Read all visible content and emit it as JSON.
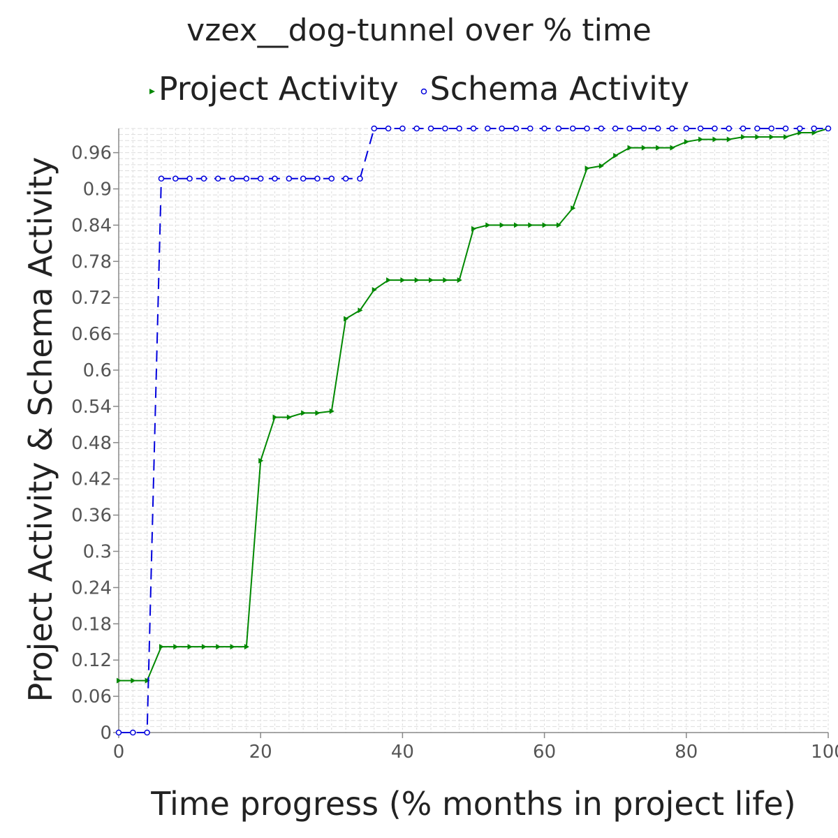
{
  "chart_data": {
    "type": "line",
    "title": "vzex__dog-tunnel over % time",
    "xlabel": "Time progress (% months in project life)",
    "ylabel": "Project Activity & Schema Activity",
    "xlim": [
      0,
      100
    ],
    "ylim": [
      0,
      1.0
    ],
    "x_ticks": [
      0,
      20,
      40,
      60,
      80,
      100
    ],
    "x_tick_labels": [
      "0",
      "20",
      "40",
      "60",
      "80",
      "100"
    ],
    "y_ticks": [
      0,
      0.06,
      0.12,
      0.18,
      0.24,
      0.3,
      0.36,
      0.42,
      0.48,
      0.54,
      0.6,
      0.66,
      0.72,
      0.78,
      0.84,
      0.9,
      0.96
    ],
    "y_tick_labels": [
      "0",
      "0.06",
      "0.12",
      "0.18",
      "0.24",
      "0.3",
      "0.36",
      "0.42",
      "0.48",
      "0.54",
      "0.6",
      "0.66",
      "0.72",
      "0.78",
      "0.84",
      "0.9",
      "0.96"
    ],
    "grid": true,
    "legend_position": "top",
    "series": [
      {
        "name": "Project Activity",
        "color": "#008800",
        "line_style": "solid",
        "marker": "triangle-right",
        "x": [
          0,
          2,
          4,
          6,
          8,
          10,
          12,
          14,
          16,
          18,
          20,
          22,
          24,
          26,
          28,
          30,
          32,
          34,
          36,
          38,
          40,
          42,
          44,
          46,
          48,
          50,
          52,
          54,
          56,
          58,
          60,
          62,
          64,
          66,
          68,
          70,
          72,
          74,
          76,
          78,
          80,
          82,
          84,
          86,
          88,
          90,
          92,
          94,
          96,
          98,
          100
        ],
        "y": [
          0.086,
          0.086,
          0.086,
          0.142,
          0.142,
          0.142,
          0.142,
          0.142,
          0.142,
          0.142,
          0.45,
          0.522,
          0.522,
          0.529,
          0.529,
          0.532,
          0.685,
          0.699,
          0.733,
          0.749,
          0.749,
          0.749,
          0.749,
          0.749,
          0.749,
          0.834,
          0.84,
          0.84,
          0.84,
          0.84,
          0.84,
          0.84,
          0.868,
          0.934,
          0.938,
          0.955,
          0.968,
          0.968,
          0.968,
          0.968,
          0.978,
          0.982,
          0.982,
          0.982,
          0.986,
          0.986,
          0.986,
          0.986,
          0.993,
          0.993,
          1.0
        ]
      },
      {
        "name": "Schema Activity",
        "color": "#0000dd",
        "line_style": "dashed",
        "marker": "circle",
        "x": [
          0,
          2,
          4,
          6,
          8,
          10,
          12,
          14,
          16,
          18,
          20,
          22,
          24,
          26,
          28,
          30,
          32,
          34,
          36,
          38,
          40,
          42,
          44,
          46,
          48,
          50,
          52,
          54,
          56,
          58,
          60,
          62,
          64,
          66,
          68,
          70,
          72,
          74,
          76,
          78,
          80,
          82,
          84,
          86,
          88,
          90,
          92,
          94,
          96,
          98,
          100
        ],
        "y": [
          0,
          0,
          0,
          0.917,
          0.917,
          0.917,
          0.917,
          0.917,
          0.917,
          0.917,
          0.917,
          0.917,
          0.917,
          0.917,
          0.917,
          0.917,
          0.917,
          0.917,
          1.0,
          1.0,
          1.0,
          1.0,
          1.0,
          1.0,
          1.0,
          1.0,
          1.0,
          1.0,
          1.0,
          1.0,
          1.0,
          1.0,
          1.0,
          1.0,
          1.0,
          1.0,
          1.0,
          1.0,
          1.0,
          1.0,
          1.0,
          1.0,
          1.0,
          1.0,
          1.0,
          1.0,
          1.0,
          1.0,
          1.0,
          1.0,
          1.0
        ]
      }
    ]
  }
}
